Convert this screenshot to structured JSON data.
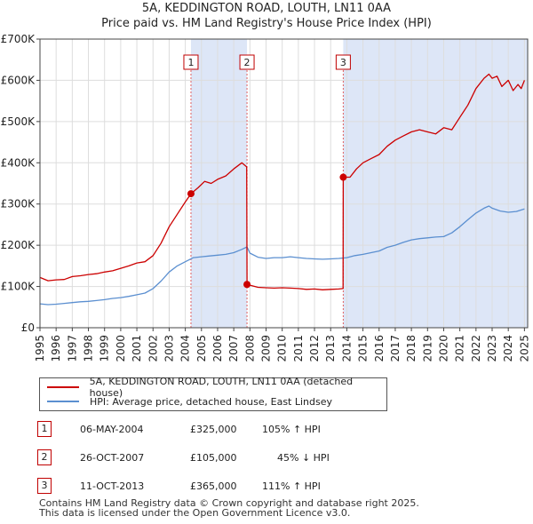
{
  "title_line1": "5A, KEDDINGTON ROAD, LOUTH, LN11 0AA",
  "title_line2": "Price paid vs. HM Land Registry's House Price Index (HPI)",
  "colors": {
    "property_line": "#cc0000",
    "hpi_line": "#5b8fd0",
    "shade": "#dde6f7",
    "grid": "#dddddd",
    "marker_line": "#e06060"
  },
  "legend": {
    "property_label": "5A, KEDDINGTON ROAD, LOUTH, LN11 0AA (detached house)",
    "hpi_label": "HPI: Average price, detached house, East Lindsey"
  },
  "transactions": [
    {
      "num": "1",
      "date": "06-MAY-2004",
      "price": "£325,000",
      "hpi": "105% ↑ HPI"
    },
    {
      "num": "2",
      "date": "26-OCT-2007",
      "price": "£105,000",
      "hpi": "45% ↓ HPI"
    },
    {
      "num": "3",
      "date": "11-OCT-2013",
      "price": "£365,000",
      "hpi": "111% ↑ HPI"
    }
  ],
  "footer_line1": "Contains HM Land Registry data © Crown copyright and database right 2025.",
  "footer_line2": "This data is licensed under the Open Government Licence v3.0.",
  "chart_data": {
    "type": "line",
    "title": "5A, KEDDINGTON ROAD, LOUTH, LN11 0AA",
    "subtitle": "Price paid vs. HM Land Registry's House Price Index (HPI)",
    "xlabel": "",
    "ylabel": "",
    "xlim": [
      1995,
      2025.2
    ],
    "ylim": [
      0,
      700000
    ],
    "grid": true,
    "legend_position": "bottom",
    "y_ticks": [
      0,
      100000,
      200000,
      300000,
      400000,
      500000,
      600000,
      700000
    ],
    "y_tick_labels": [
      "£0",
      "£100K",
      "£200K",
      "£300K",
      "£400K",
      "£500K",
      "£600K",
      "£700K"
    ],
    "x_ticks": [
      1995,
      1996,
      1997,
      1998,
      1999,
      2000,
      2001,
      2002,
      2003,
      2004,
      2005,
      2006,
      2007,
      2008,
      2009,
      2010,
      2011,
      2012,
      2013,
      2014,
      2015,
      2016,
      2017,
      2018,
      2019,
      2020,
      2021,
      2022,
      2023,
      2024,
      2025
    ],
    "x_tick_labels": [
      "1995",
      "1996",
      "1997",
      "1998",
      "1999",
      "2000",
      "2001",
      "2002",
      "2003",
      "2004",
      "2005",
      "2006",
      "2007",
      "2008",
      "2009",
      "2010",
      "2011",
      "2012",
      "2013",
      "2014",
      "2015",
      "2016",
      "2017",
      "2018",
      "2019",
      "2020",
      "2021",
      "2022",
      "2023",
      "2024",
      "2025"
    ],
    "sales": [
      {
        "label": "1",
        "x": 2004.35,
        "value": 325000
      },
      {
        "label": "2",
        "x": 2007.82,
        "value": 105000
      },
      {
        "label": "3",
        "x": 2013.78,
        "value": 365000
      }
    ],
    "shaded_ranges": [
      [
        2004.35,
        2007.82
      ],
      [
        2013.78,
        2025.2
      ]
    ],
    "series": [
      {
        "name": "5A, KEDDINGTON ROAD, LOUTH, LN11 0AA (detached house)",
        "x": [
          1995.0,
          1995.5,
          1996.0,
          1996.5,
          1997.0,
          1997.5,
          1998.0,
          1998.5,
          1999.0,
          1999.5,
          2000.0,
          2000.5,
          2001.0,
          2001.5,
          2002.0,
          2002.5,
          2003.0,
          2003.5,
          2004.0,
          2004.35,
          2004.8,
          2005.2,
          2005.6,
          2006.0,
          2006.5,
          2007.0,
          2007.5,
          2007.8,
          2007.82,
          2008.5,
          2009.0,
          2009.5,
          2010.0,
          2010.5,
          2011.0,
          2011.5,
          2012.0,
          2012.5,
          2013.0,
          2013.5,
          2013.77,
          2013.78,
          2014.2,
          2014.6,
          2015.0,
          2015.5,
          2016.0,
          2016.5,
          2017.0,
          2017.5,
          2018.0,
          2018.5,
          2019.0,
          2019.5,
          2020.0,
          2020.5,
          2021.0,
          2021.5,
          2022.0,
          2022.5,
          2022.8,
          2023.0,
          2023.3,
          2023.6,
          2024.0,
          2024.3,
          2024.6,
          2024.8,
          2025.0
        ],
        "values": [
          122000,
          114000,
          116000,
          117000,
          124000,
          126000,
          129000,
          131000,
          135000,
          138000,
          144000,
          150000,
          157000,
          160000,
          175000,
          205000,
          245000,
          275000,
          305000,
          325000,
          340000,
          355000,
          350000,
          360000,
          368000,
          385000,
          400000,
          390000,
          105000,
          98000,
          97000,
          96000,
          97000,
          96000,
          95000,
          93000,
          94000,
          92000,
          93000,
          94000,
          95000,
          365000,
          365000,
          385000,
          400000,
          410000,
          420000,
          440000,
          455000,
          465000,
          475000,
          480000,
          475000,
          470000,
          485000,
          480000,
          510000,
          540000,
          580000,
          605000,
          615000,
          605000,
          610000,
          585000,
          600000,
          575000,
          590000,
          580000,
          600000
        ]
      },
      {
        "name": "HPI: Average price, detached house, East Lindsey",
        "x": [
          1995.0,
          1995.5,
          1996.0,
          1996.5,
          1997.0,
          1997.5,
          1998.0,
          1998.5,
          1999.0,
          1999.5,
          2000.0,
          2000.5,
          2001.0,
          2001.5,
          2002.0,
          2002.5,
          2003.0,
          2003.5,
          2004.0,
          2004.5,
          2005.0,
          2005.5,
          2006.0,
          2006.5,
          2007.0,
          2007.5,
          2007.82,
          2008.0,
          2008.5,
          2009.0,
          2009.5,
          2010.0,
          2010.5,
          2011.0,
          2011.5,
          2012.0,
          2012.5,
          2013.0,
          2013.5,
          2014.0,
          2014.5,
          2015.0,
          2015.5,
          2016.0,
          2016.5,
          2017.0,
          2017.5,
          2018.0,
          2018.5,
          2019.0,
          2019.5,
          2020.0,
          2020.5,
          2021.0,
          2021.5,
          2022.0,
          2022.5,
          2022.8,
          2023.0,
          2023.5,
          2024.0,
          2024.5,
          2025.0
        ],
        "values": [
          58000,
          56000,
          57000,
          59000,
          61000,
          63000,
          64000,
          66000,
          68000,
          71000,
          73000,
          76000,
          80000,
          84000,
          95000,
          113000,
          135000,
          150000,
          160000,
          170000,
          172000,
          174000,
          176000,
          178000,
          182000,
          190000,
          196000,
          181000,
          171000,
          168000,
          170000,
          170000,
          172000,
          170000,
          168000,
          167000,
          166000,
          167000,
          168000,
          170000,
          175000,
          178000,
          182000,
          186000,
          195000,
          200000,
          207000,
          213000,
          216000,
          218000,
          220000,
          221000,
          230000,
          245000,
          262000,
          278000,
          290000,
          295000,
          290000,
          283000,
          280000,
          282000,
          288000
        ]
      }
    ]
  }
}
